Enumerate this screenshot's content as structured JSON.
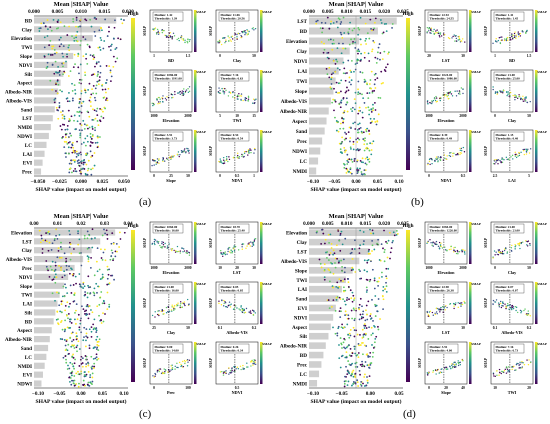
{
  "figure": {
    "panel_labels": [
      "(a)",
      "(b)",
      "(c)",
      "(d)"
    ]
  },
  "colors": {
    "bar": "#cfcfcf",
    "viridis": [
      "#440154",
      "#3b528b",
      "#21918c",
      "#5ec962",
      "#fde725"
    ],
    "line": "#000000"
  },
  "chart_data": [
    {
      "type": "bar",
      "panel": "(a)",
      "top_axis_label": "Mean |SHAP| Value",
      "top_ticks": [
        "0.000",
        "0.005",
        "0.010",
        "0.015",
        "0.020"
      ],
      "bottom_axis_label": "SHAP value (impact on model output)",
      "bottom_ticks": [
        "−0.050",
        "−0.025",
        "0.000",
        "0.025",
        "0.050"
      ],
      "colorbar_high": "High",
      "features": [
        "BD",
        "Clay",
        "Elevation",
        "TWI",
        "Slope",
        "NDVI",
        "Silt",
        "Aspect",
        "Albedo-NIR",
        "Albedo-VIS",
        "Sand",
        "LST",
        "NMDI",
        "NDWI",
        "LC",
        "LAI",
        "EVI",
        "Prec"
      ],
      "values": [
        0.021,
        0.017,
        0.015,
        0.012,
        0.01,
        0.0085,
        0.0075,
        0.0068,
        0.0062,
        0.0057,
        0.0053,
        0.0048,
        0.0043,
        0.0038,
        0.0032,
        0.0027,
        0.0022,
        0.0018
      ],
      "xlim": [
        0,
        0.024
      ],
      "dependence": [
        {
          "xlabel": "BD",
          "ylabel": "SHAP",
          "cblabel": "SMAP",
          "threshold": "Median: 1.42\nThresholds: 1.39",
          "xticks": [
            "1",
            "1.5"
          ]
        },
        {
          "xlabel": "Clay",
          "ylabel": "SHAP",
          "cblabel": "SMAP",
          "threshold": "Median: 11.06\nThresholds: 20.56",
          "xticks": [
            "0",
            "50"
          ]
        },
        {
          "xlabel": "Elevation",
          "ylabel": "SHAP",
          "cblabel": "SMAP",
          "threshold": "Median: 1086.00\nThresholds: 1191.00",
          "xticks": [
            "1000",
            "2000"
          ]
        },
        {
          "xlabel": "TWI",
          "ylabel": "SHAP",
          "cblabel": "SMAP",
          "threshold": "Median: 7.16\nThresholds: 6.63",
          "xticks": [
            "5",
            "10",
            "15"
          ]
        },
        {
          "xlabel": "Slope",
          "ylabel": "SHAP",
          "cblabel": "SMAP",
          "threshold": "Median: 3.91\nThresholds: 3.73",
          "xticks": [
            "0",
            "25",
            "50"
          ]
        },
        {
          "xlabel": "NDVI",
          "ylabel": "SHAP",
          "cblabel": "SMAP",
          "threshold": "Median: 0.54\nThresholds: 0.54",
          "xticks": [
            "0",
            "0.5",
            "1"
          ]
        }
      ]
    },
    {
      "type": "bar",
      "panel": "(b)",
      "top_axis_label": "Mean |SHAP| Value",
      "top_ticks": [
        "0.000",
        "0.005",
        "0.010",
        "0.015",
        "0.020",
        "0.025"
      ],
      "bottom_axis_label": "SHAP value (impact on model output)",
      "bottom_ticks": [
        "−0.10",
        "−0.05",
        "0.00",
        "0.05",
        "0.10"
      ],
      "colorbar_high": "High",
      "features": [
        "LST",
        "BD",
        "Elevation",
        "Clay",
        "NDVI",
        "LAI",
        "TWI",
        "Slope",
        "Albedo-VIS",
        "Albedo-NIR",
        "Aspect",
        "Sand",
        "Prec",
        "NDWI",
        "LC",
        "NMDI"
      ],
      "values": [
        0.028,
        0.022,
        0.016,
        0.013,
        0.011,
        0.0095,
        0.0085,
        0.0078,
        0.007,
        0.0063,
        0.0056,
        0.005,
        0.0042,
        0.0036,
        0.0029,
        0.0023
      ],
      "xlim": [
        0,
        0.03
      ],
      "dependence": [
        {
          "xlabel": "LST",
          "ylabel": "SHAP",
          "cblabel": "SMAP",
          "threshold": "Median: 22.92\nThresholds: 24.55",
          "xticks": [
            "20",
            "30"
          ]
        },
        {
          "xlabel": "BD",
          "ylabel": "SHAP",
          "cblabel": "SMAP",
          "threshold": "Median: 1.41\nThresholds: 1.45",
          "xticks": [
            "1",
            "1.5"
          ]
        },
        {
          "xlabel": "Elevation",
          "ylabel": "SHAP",
          "cblabel": "SMAP",
          "threshold": "Median: 1024.00\nThresholds: 1086.00",
          "xticks": [
            "1000",
            "2000"
          ]
        },
        {
          "xlabel": "Clay",
          "ylabel": "SHAP",
          "cblabel": "SMAP",
          "threshold": "Median: 21.00\nThresholds: 25.00",
          "xticks": [
            "0",
            "50"
          ]
        },
        {
          "xlabel": "NDVI",
          "ylabel": "SHAP",
          "cblabel": "SMAP",
          "threshold": "Median: 0.39\nThresholds: 0.49",
          "xticks": [
            "0",
            "0.5"
          ]
        },
        {
          "xlabel": "LAI",
          "ylabel": "SHAP",
          "cblabel": "SMAP",
          "threshold": "Median: 1.15\nThresholds: 0.40",
          "xticks": [
            "2.5",
            "5"
          ]
        }
      ]
    },
    {
      "type": "bar",
      "panel": "(c)",
      "top_axis_label": "Mean |SHAP| Value",
      "top_ticks": [
        "0.00",
        "0.01",
        "0.02",
        "0.03",
        "0.04"
      ],
      "bottom_axis_label": "SHAP value (impact on model output)",
      "bottom_ticks": [
        "−0.10",
        "−0.05",
        "0.00",
        "0.05",
        "0.10"
      ],
      "colorbar_high": "High",
      "features": [
        "Elevation",
        "LST",
        "Clay",
        "Albedo-VIS",
        "Prec",
        "NDVI",
        "Slope",
        "TWI",
        "LAI",
        "Silt",
        "BD",
        "Aspect",
        "Albedo-NIR",
        "Sand",
        "LC",
        "NMDI",
        "EVI",
        "NDWI"
      ],
      "values": [
        0.038,
        0.031,
        0.027,
        0.023,
        0.019,
        0.016,
        0.014,
        0.012,
        0.011,
        0.01,
        0.0092,
        0.0083,
        0.0074,
        0.0066,
        0.0058,
        0.005,
        0.0042,
        0.0035
      ],
      "xlim": [
        0,
        0.044
      ],
      "dependence": [
        {
          "xlabel": "Elevation",
          "ylabel": "SHAP",
          "cblabel": "SMAP",
          "threshold": "Median: 1060.00\nThresholds: 16.00",
          "xticks": [
            "1000",
            "2000"
          ]
        },
        {
          "xlabel": "LST",
          "ylabel": "SHAP",
          "cblabel": "SMAP",
          "threshold": "Median: 18.70\nThresholds: 25.40",
          "xticks": [
            "10",
            "20",
            "30"
          ]
        },
        {
          "xlabel": "Clay",
          "ylabel": "SHAP",
          "cblabel": "SMAP",
          "threshold": "Median: 21.00\nThresholds: 16.00",
          "xticks": [
            "25",
            "50"
          ]
        },
        {
          "xlabel": "Albedo-VIS",
          "ylabel": "SHAP",
          "cblabel": "SMAP",
          "threshold": "Median: 0.05\nThresholds: 0.05",
          "xticks": [
            "0.1",
            "0.2"
          ]
        },
        {
          "xlabel": "Prec",
          "ylabel": "SHAP",
          "cblabel": "SMAP",
          "threshold": "Median: 9.00\nThresholds: 14.00",
          "xticks": [
            "0",
            "100"
          ]
        },
        {
          "xlabel": "NDVI",
          "ylabel": "SHAP",
          "cblabel": "SMAP",
          "threshold": "Median: 0.26\nThresholds: 0.34",
          "xticks": [
            "0.5"
          ]
        }
      ]
    },
    {
      "type": "bar",
      "panel": "(d)",
      "top_axis_label": "Mean |SHAP| Value",
      "top_ticks": [
        "0.000",
        "0.005",
        "0.010",
        "0.015",
        "0.020",
        "0.025"
      ],
      "bottom_axis_label": "SHAP value (impact on model output)",
      "bottom_ticks": [
        "−0.10",
        "−0.05",
        "0.00",
        "0.05"
      ],
      "colorbar_high": "High",
      "features": [
        "Elevation",
        "Clay",
        "LST",
        "Albedo-VIS",
        "Slope",
        "TWI",
        "LAI",
        "Sand",
        "EVI",
        "NDVI",
        "Aspect",
        "Silt",
        "Albedo-NIR",
        "BD",
        "Prec",
        "LC",
        "NMDI"
      ],
      "values": [
        0.026,
        0.021,
        0.018,
        0.015,
        0.013,
        0.011,
        0.0098,
        0.0088,
        0.008,
        0.0072,
        0.0065,
        0.0058,
        0.005,
        0.0043,
        0.0037,
        0.003,
        0.0024
      ],
      "xlim": [
        0,
        0.028
      ],
      "dependence": [
        {
          "xlabel": "Elevation",
          "ylabel": "SHAP",
          "cblabel": "SMAP",
          "threshold": "Median: 1084.00\nThresholds: 1226.00",
          "xticks": [
            "1000",
            "2000"
          ]
        },
        {
          "xlabel": "Clay",
          "ylabel": "SHAP",
          "cblabel": "SMAP",
          "threshold": "Median: 21.00\nThresholds: 23.00",
          "xticks": [
            "0",
            "50"
          ]
        },
        {
          "xlabel": "LST",
          "ylabel": "SHAP",
          "cblabel": "SMAP",
          "threshold": "Median: 22.90\nThresholds: 26.38",
          "xticks": [
            "20",
            "30"
          ]
        },
        {
          "xlabel": "Albedo-VIS",
          "ylabel": "SHAP",
          "cblabel": "SMAP",
          "threshold": "Median: 0.07\nThresholds: 0.07",
          "xticks": [
            "0.1",
            "0.2"
          ]
        },
        {
          "xlabel": "Slope",
          "ylabel": "SHAP",
          "cblabel": "SMAP",
          "threshold": "Median: 3.91\nThresholds: 4.00",
          "xticks": [
            "0",
            "20",
            "40"
          ]
        },
        {
          "xlabel": "TWI",
          "ylabel": "SHAP",
          "cblabel": "SMAP",
          "threshold": "Median: 7.16\nThresholds: 6.73",
          "xticks": [
            "10",
            "20"
          ]
        }
      ]
    }
  ]
}
